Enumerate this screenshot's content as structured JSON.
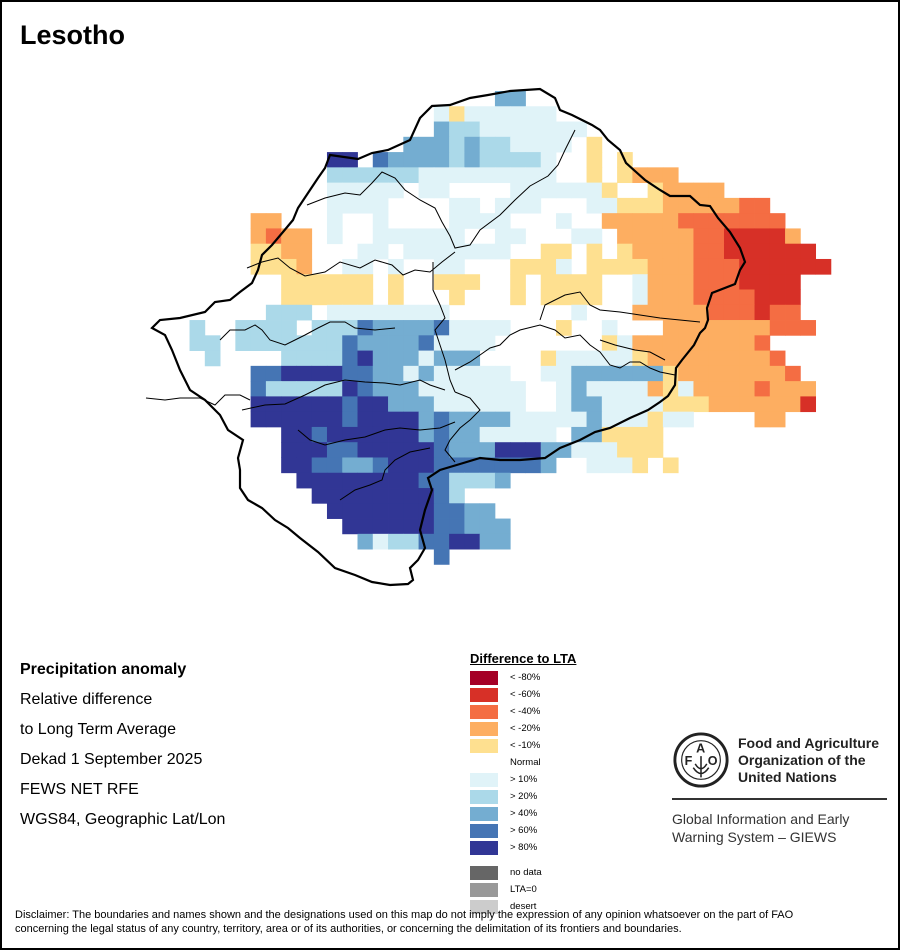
{
  "title": "Lesotho",
  "info": {
    "heading": "Precipitation anomaly",
    "lines": [
      "Relative difference",
      "to Long Term Average",
      "Dekad 1 September 2025",
      "FEWS NET RFE",
      "WGS84, Geographic Lat/Lon"
    ]
  },
  "legend": {
    "title": "Difference to LTA",
    "classes": [
      {
        "key": "5",
        "label": "< -80%",
        "color": "#a50026"
      },
      {
        "key": "4",
        "label": "< -60%",
        "color": "#d73027"
      },
      {
        "key": "3",
        "label": "< -40%",
        "color": "#f46d43"
      },
      {
        "key": "2",
        "label": "< -20%",
        "color": "#fdae61"
      },
      {
        "key": "1",
        "label": "< -10%",
        "color": "#fee090"
      },
      {
        "key": ".",
        "label": "Normal",
        "color": "#ffffff"
      },
      {
        "key": "a",
        "label": "> 10%",
        "color": "#e0f3f8"
      },
      {
        "key": "b",
        "label": "> 20%",
        "color": "#abd9e9"
      },
      {
        "key": "c",
        "label": "> 40%",
        "color": "#74add1"
      },
      {
        "key": "d",
        "label": "> 60%",
        "color": "#4575b4"
      },
      {
        "key": "e",
        "label": "> 80%",
        "color": "#313695"
      }
    ],
    "special": [
      {
        "label": "no data",
        "color": "#666666"
      },
      {
        "label": "LTA=0",
        "color": "#999999"
      },
      {
        "label": "desert",
        "color": "#cccccc"
      }
    ]
  },
  "organization": {
    "name_lines": [
      "Food and Agriculture",
      "Organization of the",
      "United Nations"
    ],
    "logo_letters": [
      "F",
      "A",
      "O"
    ],
    "logo_motto": "FIAT PANIS",
    "system_lines": [
      "Global Information and Early",
      "Warning System – GIEWS"
    ]
  },
  "disclaimer": [
    "Disclaimer: The boundaries and names shown and the designations used on this map do not imply the expression of any opinion whatsoever on the part of FAO",
    "concerning the legal status of any country, territory, area or of its authorities, or concerning the delimitation of its frontiers and boundaries."
  ],
  "anomaly_grid": {
    "legend_keys": ". = normal, 1..5 = drier classes, a..e = wetter classes",
    "rows": [
      "......................cc.....................",
      "..................a1aaaaaa...................",
      "..................cbbaaaaaaa.................",
      "................cccbcbbaaaa.1................",
      "...........ee.dccccbcbbbba..1.1..............",
      "...........bbbbbbaaaaaaaaa..1.1222...........",
      "...........aaaaa.aa....aaaaaa1..12222........",
      "...........aaaa....aa.aaa...aa1112222233.....",
      "......22...a..a....aaaa...a..222223333333....",
      "......2322.a..aaaaaa..aa...aa.222223344442...",
      "......1122...aa.aaaaaaa..11.1.1222233444444..",
      "......1112..aa.a..aa...111a.1111222333444444.",
      "........111111.1..111..1.1111..a2223334444...",
      "........111111.1...1...1.1111..a2223333444...",
      ".......bbb.aaaaaaaa........a...22222333433...",
      "..b..bbbb.bbbdccccdaaaa...1..a...2222222333..",
      "..bb.bbbbbbbdccccdaaaa.......1a222222223.....",
      "...b....bbbbdecccaccc....1aaaaa1222222223....",
      "......ddeeeeddccacaaaaa..aacccccc122222223...",
      "......dbbbbbedcccaaaaaaa..acaaaa21a22223222...",
      "......eeeeeedeecccaaaaaa..accaaaa1112222224..",
      "......eeeeeedeeeecdccccaaaaacaaa1aa....22....",
      "........eedeeeeeecdccaaaaa.cc1111...........",
      "........eeeddeeeeedccceeeccaaa111...........",
      "........eeddccdeeedddddddc..aaa1.1..........",
      ".........eeeeeeeeddbbbc.............",
      "..........eeeeeeeedb.................",
      "...........eeeeeeeddcc...............",
      "............eeeeeeddccc..............",
      ".............cabbddeecc..............",
      "..................d.................."
    ]
  }
}
